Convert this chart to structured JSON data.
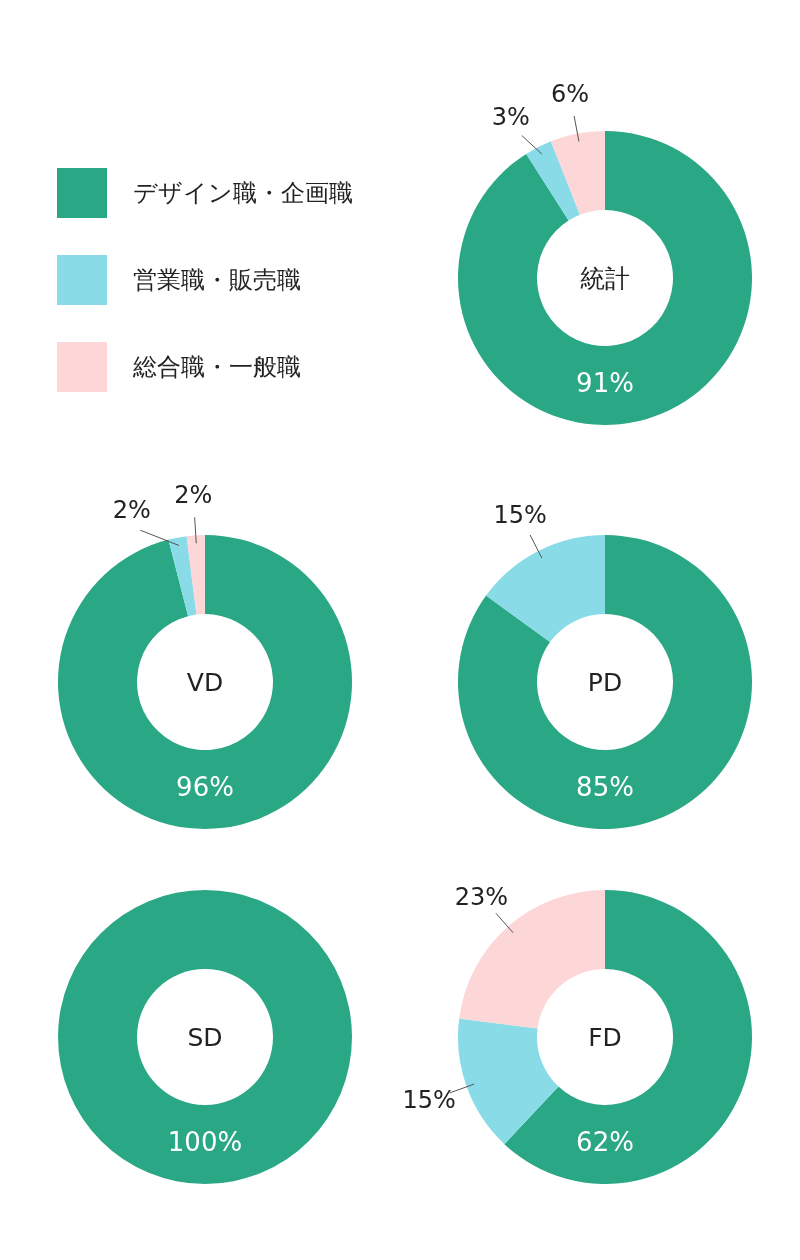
{
  "chart_data": [
    {
      "type": "donut",
      "title": "統計",
      "categories": [
        "デザイン職・企画職",
        "営業職・販売職",
        "総合職・一般職"
      ],
      "values": [
        91,
        3,
        6
      ],
      "colors": [
        "#2aa784",
        "#8adbe8",
        "#fdd6d8"
      ],
      "value_labels": [
        "91%",
        "3%",
        "6%"
      ],
      "legend": "left"
    },
    {
      "type": "donut",
      "title": "VD",
      "categories": [
        null,
        null,
        null
      ],
      "values": [
        96,
        2,
        2
      ],
      "colors": [
        "#2aa784",
        "#8adbe8",
        "#fdd6d8"
      ],
      "value_labels": [
        "96%",
        "2%",
        "2%"
      ]
    },
    {
      "type": "donut",
      "title": "PD",
      "categories": [
        null,
        null,
        null
      ],
      "values": [
        85,
        15,
        0
      ],
      "colors": [
        "#2aa784",
        "#8adbe8",
        "#fdd6d8"
      ],
      "value_labels": [
        "85%",
        "15%",
        null
      ]
    },
    {
      "type": "donut",
      "title": "SD",
      "categories": [
        null,
        null,
        null
      ],
      "values": [
        100,
        0,
        0
      ],
      "colors": [
        "#2aa784",
        "#8adbe8",
        "#fdd6d8"
      ],
      "value_labels": [
        "100%",
        null,
        null
      ]
    },
    {
      "type": "donut",
      "title": "FD",
      "categories": [
        null,
        null,
        null
      ],
      "values": [
        62,
        15,
        23
      ],
      "colors": [
        "#2aa784",
        "#8adbe8",
        "#fdd6d8"
      ],
      "value_labels": [
        "62%",
        "15%",
        "23%"
      ]
    }
  ]
}
